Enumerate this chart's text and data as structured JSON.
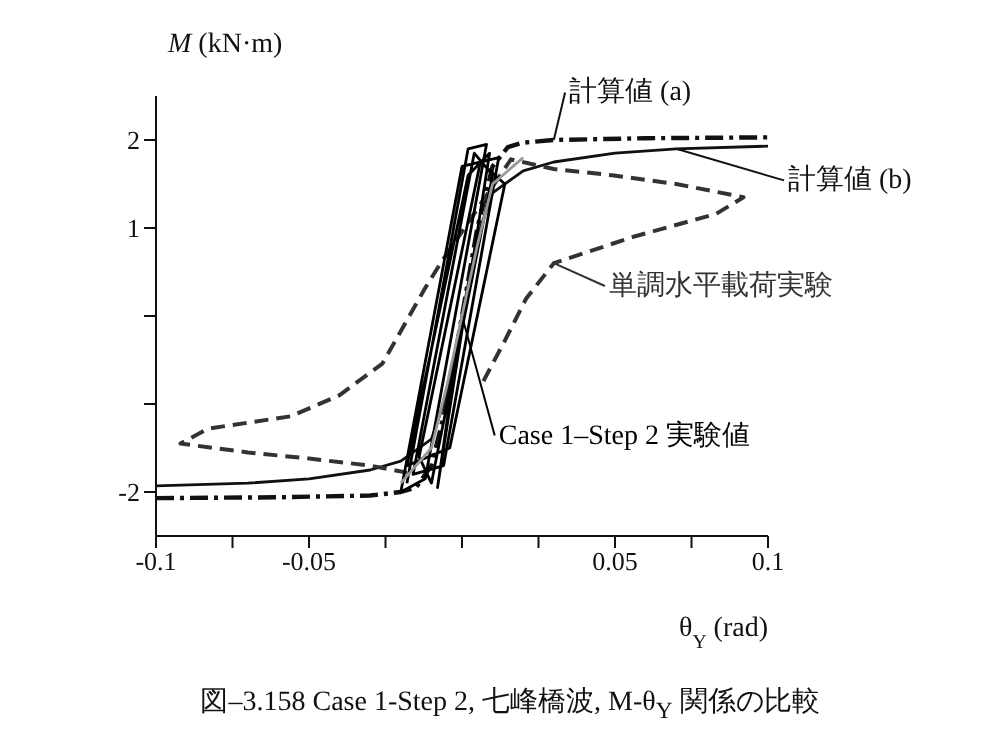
{
  "chart_data": {
    "type": "line",
    "title": "図–3.158 Case 1-Step 2, 七峰橋波, M-θ$_{Y}$ 関係の比較",
    "xlabel": "θ$_{Y}$ (rad)",
    "ylabel": "M  (kN·m)",
    "xlim": [
      -0.1,
      0.1
    ],
    "ylim": [
      -2.5,
      2.5
    ],
    "xticks": [
      -0.1,
      {
        "value": -0.075,
        "label": null
      },
      -0.05,
      {
        "value": -0.025,
        "label": null
      },
      {
        "value": 0,
        "label": null
      },
      {
        "value": 0.025,
        "label": null
      },
      0.05,
      {
        "value": 0.075,
        "label": null
      },
      0.1
    ],
    "yticks": [
      -2,
      {
        "value": -1,
        "label": null
      },
      {
        "value": 0,
        "label": null
      },
      1,
      2
    ],
    "marker": "none",
    "legend": "right",
    "series": [
      {
        "name": "計算値 (a)",
        "color": "#111111",
        "line_style": "dashdot",
        "x": [
          -0.1,
          -0.06,
          -0.03,
          -0.02,
          -0.015,
          -0.01,
          -0.005,
          0,
          0.005,
          0.01,
          0.015,
          0.02,
          0.03,
          0.06,
          0.1
        ],
        "values": [
          -2.07,
          -2.06,
          -2.04,
          -2.0,
          -1.95,
          -1.7,
          -1.0,
          0,
          1.0,
          1.7,
          1.92,
          1.97,
          2.0,
          2.02,
          2.03
        ]
      },
      {
        "name": "計算値 (b)",
        "color": "#111111",
        "line_style": "solid",
        "x": [
          -0.1,
          -0.07,
          -0.05,
          -0.03,
          -0.02,
          -0.01,
          -0.005,
          0,
          0.005,
          0.01,
          0.02,
          0.03,
          0.05,
          0.07,
          0.1
        ],
        "values": [
          -1.93,
          -1.9,
          -1.85,
          -1.75,
          -1.65,
          -1.4,
          -0.9,
          0,
          0.9,
          1.4,
          1.65,
          1.75,
          1.85,
          1.9,
          1.93
        ]
      },
      {
        "name": "単調水平載荷実験",
        "color": "#333333",
        "line_style": "dashed",
        "x": [
          0.007,
          0.014,
          0.021,
          0.03,
          0.056,
          0.083,
          0.092,
          0.07,
          0.049,
          0.03,
          0.016,
          -0.007,
          -0.012,
          -0.026,
          -0.04,
          -0.056,
          -0.083,
          -0.092,
          -0.07,
          -0.05,
          -0.03,
          -0.018
        ],
        "values": [
          -0.74,
          -0.28,
          0.2,
          0.6,
          0.9,
          1.16,
          1.35,
          1.5,
          1.6,
          1.67,
          1.78,
          0.6,
          0.32,
          -0.54,
          -0.9,
          -1.14,
          -1.28,
          -1.45,
          -1.55,
          -1.62,
          -1.7,
          -1.78
        ]
      },
      {
        "name": "Case 1–Step 2 実験値",
        "color": "#000000",
        "line_style": "solid",
        "x": [
          -0.018,
          0.002,
          0.008,
          -0.012,
          -0.02,
          0.0,
          0.012,
          -0.006,
          -0.016,
          0.004,
          0.01,
          -0.01,
          -0.014,
          0.006,
          0.014,
          -0.004,
          -0.018,
          0.002,
          0.009,
          -0.008,
          0.0
        ],
        "values": [
          -1.9,
          1.9,
          1.95,
          -1.85,
          -2.0,
          1.7,
          1.8,
          -1.7,
          -1.8,
          1.85,
          1.6,
          -1.9,
          -1.6,
          1.75,
          1.5,
          -1.5,
          -1.7,
          1.6,
          1.85,
          -1.95,
          0.0
        ]
      },
      {
        "color": "#999999",
        "line_style": "solid",
        "x": [
          -0.02,
          -0.01,
          -0.005,
          0,
          0.005,
          0.01,
          0.02
        ],
        "values": [
          -1.9,
          -1.5,
          -0.8,
          0,
          0.8,
          1.5,
          1.8
        ]
      }
    ]
  }
}
